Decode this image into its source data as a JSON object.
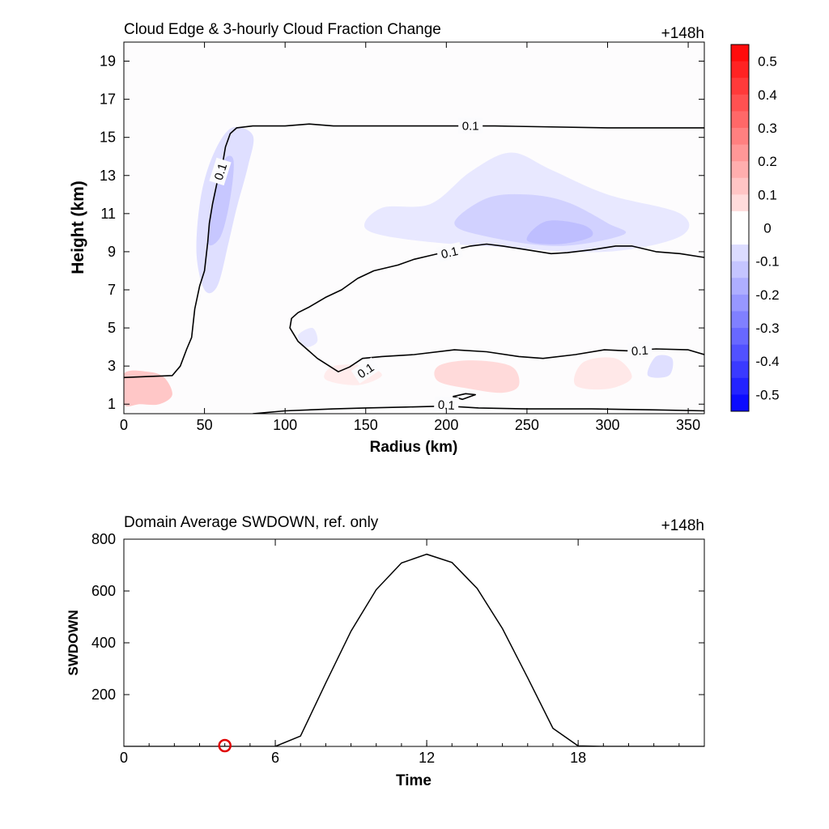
{
  "chart_data": [
    {
      "type": "heatmap",
      "title": "Cloud Edge & 3-hourly Cloud Fraction Change",
      "time_label": "+148h",
      "xlabel": "Radius (km)",
      "ylabel": "Height (km)",
      "xlim": [
        0,
        360
      ],
      "ylim": [
        0.5,
        20
      ],
      "xticks": [
        "0",
        "50",
        "100",
        "150",
        "200",
        "250",
        "300",
        "350"
      ],
      "yticks": [
        "1",
        "3",
        "5",
        "7",
        "9",
        "11",
        "13",
        "15",
        "17",
        "19"
      ],
      "colorbar": {
        "range": [
          -0.55,
          0.55
        ],
        "min_color": "#0000ff",
        "mid_color": "#ffffff",
        "max_color": "#ff0000",
        "ticks": [
          "0.5",
          "0.4",
          "0.3",
          "0.2",
          "0.1",
          "0",
          "-0.1",
          "-0.2",
          "-0.3",
          "-0.4",
          "-0.5"
        ]
      },
      "shaded_regions": [
        {
          "value": 0.25,
          "points": [
            [
              0,
              1.5
            ],
            [
              10,
              1.4
            ],
            [
              22,
              1.6
            ],
            [
              28,
              1.9
            ],
            [
              22,
              2.4
            ],
            [
              10,
              2.4
            ],
            [
              0,
              2.5
            ]
          ]
        },
        {
          "value": 0.12,
          "points": [
            [
              0,
              2.6
            ],
            [
              15,
              2.7
            ],
            [
              25,
              2.4
            ],
            [
              30,
              1.5
            ],
            [
              22,
              1.0
            ],
            [
              10,
              1.0
            ],
            [
              0,
              1.0
            ]
          ]
        },
        {
          "value": 0.08,
          "points": [
            [
              195,
              2.2
            ],
            [
              215,
              1.8
            ],
            [
              235,
              1.6
            ],
            [
              245,
              2.0
            ],
            [
              240,
              3.0
            ],
            [
              215,
              3.3
            ],
            [
              195,
              3.0
            ]
          ]
        },
        {
          "value": 0.05,
          "points": [
            [
              280,
              2.0
            ],
            [
              300,
              1.8
            ],
            [
              315,
              2.4
            ],
            [
              305,
              3.4
            ],
            [
              285,
              3.2
            ]
          ]
        },
        {
          "value": 0.04,
          "points": [
            [
              125,
              2.3
            ],
            [
              145,
              2.0
            ],
            [
              160,
              2.5
            ],
            [
              150,
              3.0
            ],
            [
              130,
              3.0
            ]
          ]
        },
        {
          "value": -0.05,
          "points": [
            [
              190,
              11.5
            ],
            [
              215,
              13.2
            ],
            [
              240,
              14.2
            ],
            [
              265,
              13.3
            ],
            [
              300,
              12.0
            ],
            [
              345,
              11.0
            ],
            [
              345,
              9.8
            ],
            [
              300,
              9.0
            ],
            [
              240,
              9.2
            ],
            [
              180,
              9.6
            ],
            [
              150,
              10.2
            ],
            [
              160,
              11.3
            ]
          ]
        },
        {
          "value": -0.1,
          "points": [
            [
              205,
              10.5
            ],
            [
              225,
              11.8
            ],
            [
              250,
              12.0
            ],
            [
              275,
              11.6
            ],
            [
              300,
              10.5
            ],
            [
              310,
              9.9
            ],
            [
              270,
              9.3
            ],
            [
              225,
              9.8
            ]
          ]
        },
        {
          "value": -0.14,
          "points": [
            [
              250,
              9.6
            ],
            [
              262,
              10.6
            ],
            [
              285,
              10.4
            ],
            [
              290,
              9.8
            ],
            [
              270,
              9.4
            ]
          ]
        },
        {
          "value": -0.07,
          "points": [
            [
              45,
              9.0
            ],
            [
              48,
              12.0
            ],
            [
              56,
              14.2
            ],
            [
              67,
              15.5
            ],
            [
              80,
              15.1
            ],
            [
              77,
              13.5
            ],
            [
              70,
              11.3
            ],
            [
              65,
              9.5
            ],
            [
              58,
              7.2
            ],
            [
              50,
              7.0
            ]
          ]
        },
        {
          "value": -0.12,
          "points": [
            [
              52,
              9.5
            ],
            [
              56,
              12.0
            ],
            [
              62,
              13.8
            ],
            [
              68,
              13.8
            ],
            [
              66,
              11.8
            ],
            [
              60,
              9.8
            ]
          ]
        },
        {
          "value": -0.07,
          "points": [
            [
              325,
              2.5
            ],
            [
              330,
              3.5
            ],
            [
              340,
              3.4
            ],
            [
              338,
              2.5
            ]
          ]
        },
        {
          "value": -0.05,
          "points": [
            [
              108,
              4.6
            ],
            [
              113,
              4.0
            ],
            [
              120,
              4.3
            ],
            [
              117,
              5.0
            ]
          ]
        }
      ],
      "contours": [
        {
          "label": "0.1",
          "points": [
            [
              0,
              2.4
            ],
            [
              15,
              2.45
            ],
            [
              30,
              2.5
            ],
            [
              35,
              3.0
            ],
            [
              39,
              3.9
            ],
            [
              42,
              4.5
            ],
            [
              44,
              6.0
            ],
            [
              47,
              7.2
            ],
            [
              50,
              8.0
            ],
            [
              52,
              9.5
            ],
            [
              53,
              10.5
            ],
            [
              55,
              11.5
            ],
            [
              58,
              12.7
            ],
            [
              61,
              13.5
            ],
            [
              63,
              14.5
            ],
            [
              66,
              15.2
            ],
            [
              70,
              15.5
            ],
            [
              80,
              15.6
            ],
            [
              100,
              15.6
            ],
            [
              115,
              15.7
            ],
            [
              130,
              15.6
            ],
            [
              200,
              15.6
            ],
            [
              230,
              15.6
            ],
            [
              300,
              15.5
            ],
            [
              360,
              15.5
            ]
          ],
          "label_positions": [
            [
              60,
              13.2
            ],
            [
              215,
              15.6
            ]
          ]
        },
        {
          "label": "0.1",
          "points": [
            [
              360,
              8.7
            ],
            [
              345,
              8.9
            ],
            [
              330,
              9.0
            ],
            [
              315,
              9.3
            ],
            [
              305,
              9.3
            ],
            [
              290,
              9.1
            ],
            [
              275,
              8.95
            ],
            [
              265,
              8.9
            ],
            [
              250,
              9.1
            ],
            [
              235,
              9.3
            ],
            [
              225,
              9.4
            ],
            [
              215,
              9.3
            ],
            [
              205,
              9.1
            ],
            [
              190,
              8.8
            ],
            [
              180,
              8.6
            ],
            [
              170,
              8.3
            ],
            [
              155,
              8.0
            ],
            [
              145,
              7.6
            ],
            [
              135,
              7.0
            ],
            [
              125,
              6.6
            ],
            [
              115,
              6.1
            ],
            [
              108,
              5.8
            ],
            [
              104,
              5.5
            ],
            [
              103,
              5.0
            ],
            [
              108,
              4.3
            ],
            [
              120,
              3.4
            ],
            [
              133,
              2.7
            ],
            [
              140,
              2.95
            ],
            [
              148,
              3.4
            ],
            [
              160,
              3.5
            ],
            [
              180,
              3.6
            ],
            [
              205,
              3.85
            ],
            [
              225,
              3.75
            ],
            [
              245,
              3.5
            ],
            [
              260,
              3.4
            ],
            [
              280,
              3.6
            ],
            [
              298,
              3.85
            ],
            [
              312,
              3.8
            ],
            [
              330,
              3.9
            ],
            [
              350,
              3.85
            ],
            [
              360,
              3.6
            ]
          ],
          "label_positions": [
            [
              202,
              8.95
            ],
            [
              150,
              2.75
            ],
            [
              320,
              3.8
            ]
          ]
        },
        {
          "label": "0.1",
          "points": [
            [
              80,
              0.5
            ],
            [
              100,
              0.65
            ],
            [
              130,
              0.75
            ],
            [
              150,
              0.8
            ],
            [
              175,
              0.85
            ],
            [
              200,
              0.9
            ],
            [
              220,
              0.8
            ],
            [
              250,
              0.75
            ],
            [
              290,
              0.75
            ],
            [
              330,
              0.7
            ],
            [
              360,
              0.65
            ]
          ],
          "label_positions": [
            [
              200,
              0.95
            ]
          ]
        },
        {
          "label": "",
          "points": [
            [
              204,
              1.4
            ],
            [
              212,
              1.55
            ],
            [
              218,
              1.5
            ],
            [
              210,
              1.25
            ],
            [
              204,
              1.4
            ]
          ],
          "label_positions": []
        }
      ]
    },
    {
      "type": "line",
      "title": "Domain Average SWDOWN, ref. only",
      "time_label": "+148h",
      "xlabel": "Time",
      "ylabel": "SWDOWN",
      "xlim": [
        0,
        23
      ],
      "ylim": [
        0,
        800
      ],
      "xticks": [
        "0",
        "6",
        "12",
        "18"
      ],
      "yticks": [
        "200",
        "400",
        "600",
        "800"
      ],
      "x": [
        0,
        1,
        2,
        3,
        4,
        5,
        6,
        7,
        8,
        9,
        10,
        11,
        12,
        13,
        14,
        15,
        16,
        17,
        18,
        19,
        20,
        21,
        22,
        23
      ],
      "values": [
        0,
        0,
        0,
        0,
        0,
        0,
        0,
        40,
        245,
        445,
        605,
        708,
        742,
        710,
        610,
        455,
        265,
        70,
        2,
        0,
        0,
        0,
        0,
        0
      ],
      "marker": {
        "x": 4,
        "y": 0,
        "color": "#e00000"
      }
    }
  ]
}
